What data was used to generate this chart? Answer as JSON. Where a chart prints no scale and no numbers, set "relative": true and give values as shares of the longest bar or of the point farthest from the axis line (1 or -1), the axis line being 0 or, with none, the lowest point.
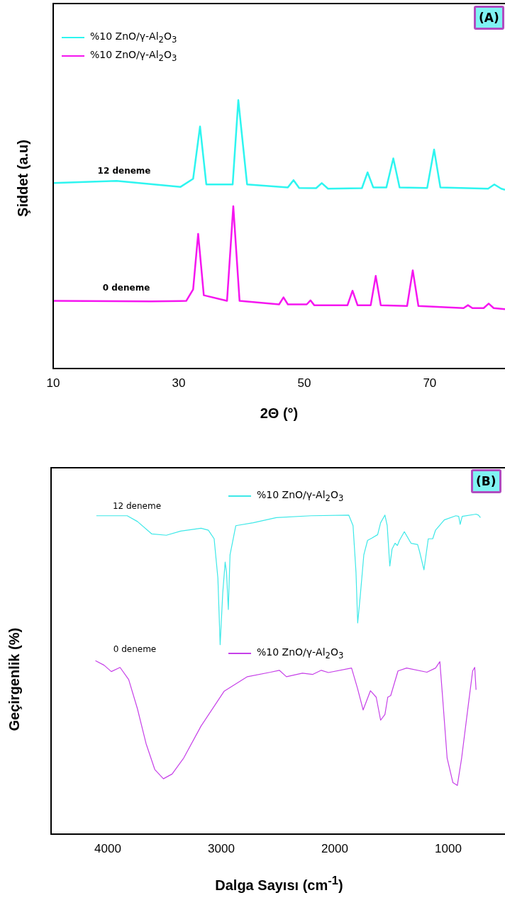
{
  "chart_data": [
    {
      "type": "line",
      "title": "(A)",
      "xlabel": "2Θ (°)",
      "ylabel": "Şiddet (a.u)",
      "relative": true,
      "xlim": [
        10,
        82
      ],
      "xticks": [
        10,
        30,
        50,
        70
      ],
      "legend": "top left",
      "grid": false,
      "marker": "none",
      "line_style": "solid",
      "annotations": [
        "12 deneme",
        "0 deneme"
      ],
      "series": [
        {
          "name": "%10 ZnO/γ-Al$_{2}$O$_{3}$",
          "color": "#2ef5f0",
          "x": [
            10,
            20.1,
            30.3,
            32.3,
            33.4,
            34.4,
            38.6,
            39.5,
            40.9,
            47.4,
            48.3,
            49.2,
            51.9,
            52.8,
            53.8,
            59.2,
            60.1,
            61,
            63.1,
            64.2,
            65.2,
            69.6,
            70.7,
            71.7,
            79.3,
            80.3,
            81.4,
            82
          ],
          "values": [
            0.691,
            0.699,
            0.677,
            0.707,
            0.902,
            0.686,
            0.686,
            1,
            0.686,
            0.675,
            0.702,
            0.673,
            0.672,
            0.691,
            0.67,
            0.672,
            0.731,
            0.675,
            0.675,
            0.783,
            0.675,
            0.673,
            0.816,
            0.675,
            0.67,
            0.686,
            0.67,
            0.666
          ]
        },
        {
          "name": "%10 ZnO/γ-Al$_{2}$O$_{3}$",
          "color": "#f516f0",
          "x": [
            10,
            25.6,
            31.2,
            32.3,
            33.1,
            34,
            37.7,
            38.7,
            39.7,
            46,
            46.7,
            47.4,
            50.4,
            51,
            51.6,
            56.9,
            57.7,
            58.5,
            60.6,
            61.4,
            62.2,
            66.4,
            67.3,
            68.2,
            75.4,
            76.1,
            76.8,
            78.6,
            79.4,
            80.2,
            82
          ],
          "values": [
            0.252,
            0.25,
            0.252,
            0.295,
            0.502,
            0.273,
            0.252,
            0.605,
            0.252,
            0.239,
            0.265,
            0.239,
            0.239,
            0.254,
            0.236,
            0.236,
            0.29,
            0.236,
            0.236,
            0.345,
            0.236,
            0.233,
            0.366,
            0.233,
            0.225,
            0.236,
            0.225,
            0.225,
            0.242,
            0.225,
            0.221
          ]
        }
      ]
    },
    {
      "type": "line",
      "title": "(B)",
      "xlabel": "Dalga Sayısı (cm$^{-1}$)",
      "ylabel": "Geçirgenlik (%)",
      "relative": true,
      "xlim": [
        4500,
        500
      ],
      "xticks": [
        4000,
        3000,
        2000,
        1000
      ],
      "legend": "top",
      "grid": false,
      "marker": "none",
      "line_style": "solid",
      "annotations": [
        "12 deneme",
        "0 deneme"
      ],
      "series": [
        {
          "name": "%10 ZnO/γ-Al$_{2}$O$_{3}$",
          "color": "#3ee8e8",
          "x": [
            4101,
            3829,
            3739,
            3612,
            3484,
            3357,
            3178,
            3114,
            3063,
            3030,
            3010,
            2987,
            2966,
            2954,
            2938,
            2923,
            2872,
            2719,
            2515,
            2209,
            1877,
            1839,
            1813,
            1798,
            1775,
            1744,
            1711,
            1673,
            1622,
            1596,
            1558,
            1538,
            1515,
            1495,
            1469,
            1448,
            1430,
            1387,
            1328,
            1270,
            1252,
            1214,
            1176,
            1137,
            1112,
            1035,
            933,
            908,
            895,
            877,
            755,
            734,
            716
          ],
          "values": [
            0.995,
            0.995,
            0.977,
            0.938,
            0.934,
            0.947,
            0.956,
            0.95,
            0.923,
            0.8,
            0.592,
            0.755,
            0.85,
            0.818,
            0.702,
            0.873,
            0.964,
            0.973,
            0.989,
            0.995,
            0.997,
            0.964,
            0.818,
            0.66,
            0.746,
            0.873,
            0.918,
            0.925,
            0.936,
            0.973,
            0.997,
            0.964,
            0.838,
            0.891,
            0.909,
            0.902,
            0.918,
            0.945,
            0.909,
            0.905,
            0.882,
            0.826,
            0.923,
            0.923,
            0.95,
            0.982,
            0.995,
            0.993,
            0.968,
            0.993,
            1,
            0.997,
            0.989
          ]
        },
        {
          "name": "%10 ZnO/γ-Al$_{2}$O$_{3}$",
          "color": "#c640e8",
          "x": [
            4109,
            4033,
            3969,
            3892,
            3816,
            3739,
            3663,
            3586,
            3510,
            3433,
            3331,
            3178,
            2974,
            2770,
            2566,
            2489,
            2426,
            2285,
            2196,
            2119,
            2056,
            1852,
            1800,
            1750,
            1686,
            1635,
            1596,
            1558,
            1533,
            1507,
            1443,
            1367,
            1188,
            1112,
            1074,
            1048,
            1010,
            959,
            920,
            882,
            818,
            785,
            767,
            755
          ],
          "values": [
            0.542,
            0.528,
            0.508,
            0.521,
            0.483,
            0.392,
            0.283,
            0.202,
            0.173,
            0.188,
            0.238,
            0.338,
            0.447,
            0.492,
            0.506,
            0.512,
            0.492,
            0.503,
            0.499,
            0.512,
            0.505,
            0.519,
            0.456,
            0.388,
            0.448,
            0.428,
            0.356,
            0.374,
            0.428,
            0.433,
            0.51,
            0.519,
            0.506,
            0.519,
            0.539,
            0.419,
            0.238,
            0.161,
            0.152,
            0.238,
            0.419,
            0.51,
            0.521,
            0.451
          ]
        }
      ]
    }
  ]
}
